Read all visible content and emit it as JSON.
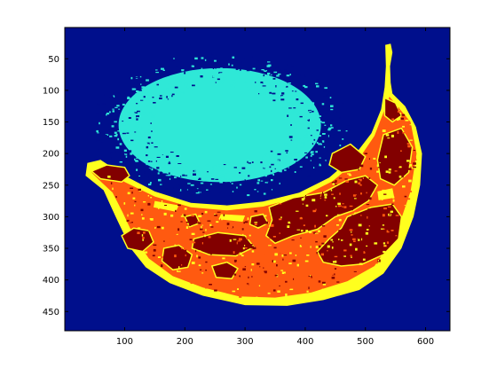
{
  "chart_data": {
    "type": "heatmap",
    "title": "",
    "xlabel": "",
    "ylabel": "",
    "xlim": [
      0.5,
      640.5
    ],
    "ylim": [
      0.5,
      480.5
    ],
    "y_direction": "reversed",
    "colormap": "jet",
    "num_clusters": 5,
    "x_ticks": [
      {
        "value": 100,
        "label": "100"
      },
      {
        "value": 200,
        "label": "200"
      },
      {
        "value": 300,
        "label": "300"
      },
      {
        "value": 400,
        "label": "400"
      },
      {
        "value": 500,
        "label": "500"
      },
      {
        "value": 600,
        "label": "600"
      }
    ],
    "y_ticks": [
      {
        "value": 50,
        "label": "50"
      },
      {
        "value": 100,
        "label": "100"
      },
      {
        "value": 150,
        "label": "150"
      },
      {
        "value": 200,
        "label": "200"
      },
      {
        "value": 250,
        "label": "250"
      },
      {
        "value": 300,
        "label": "300"
      },
      {
        "value": 350,
        "label": "350"
      },
      {
        "value": 400,
        "label": "400"
      },
      {
        "value": 450,
        "label": "450"
      }
    ],
    "colors": {
      "background_cluster": "#000f8c",
      "shadow_cluster": "#2fe8d7",
      "yellow_cluster": "#ffff1e",
      "orange_cluster": "#ff5a10",
      "dark_spots_cluster": "#820000",
      "frame": "#000000"
    },
    "regions": {
      "shadow_ellipse": {
        "cx": 258,
        "cy": 155,
        "rx": 205,
        "ry": 110
      },
      "banana_outer_outline": [
        [
          533,
          28
        ],
        [
          542,
          26
        ],
        [
          545,
          40
        ],
        [
          541,
          62
        ],
        [
          542,
          88
        ],
        [
          545,
          105
        ],
        [
          566,
          125
        ],
        [
          584,
          158
        ],
        [
          594,
          200
        ],
        [
          591,
          250
        ],
        [
          580,
          300
        ],
        [
          560,
          350
        ],
        [
          530,
          390
        ],
        [
          490,
          416
        ],
        [
          430,
          432
        ],
        [
          370,
          441
        ],
        [
          300,
          440
        ],
        [
          230,
          425
        ],
        [
          175,
          405
        ],
        [
          135,
          380
        ],
        [
          110,
          350
        ],
        [
          85,
          300
        ],
        [
          65,
          258
        ],
        [
          35,
          235
        ],
        [
          38,
          215
        ],
        [
          60,
          210
        ],
        [
          100,
          235
        ],
        [
          150,
          260
        ],
        [
          210,
          278
        ],
        [
          270,
          282
        ],
        [
          330,
          276
        ],
        [
          390,
          262
        ],
        [
          440,
          238
        ],
        [
          480,
          205
        ],
        [
          510,
          168
        ],
        [
          526,
          130
        ],
        [
          532,
          95
        ],
        [
          534,
          62
        ]
      ],
      "banana_inner_outline": [
        [
          540,
          110
        ],
        [
          575,
          150
        ],
        [
          585,
          200
        ],
        [
          575,
          260
        ],
        [
          550,
          330
        ],
        [
          515,
          378
        ],
        [
          470,
          402
        ],
        [
          410,
          420
        ],
        [
          350,
          428
        ],
        [
          290,
          426
        ],
        [
          230,
          412
        ],
        [
          180,
          394
        ],
        [
          140,
          366
        ],
        [
          115,
          330
        ],
        [
          96,
          292
        ],
        [
          80,
          262
        ],
        [
          60,
          244
        ],
        [
          45,
          230
        ],
        [
          60,
          222
        ],
        [
          100,
          245
        ],
        [
          150,
          268
        ],
        [
          210,
          285
        ],
        [
          270,
          290
        ],
        [
          330,
          284
        ],
        [
          395,
          268
        ],
        [
          445,
          244
        ],
        [
          488,
          210
        ],
        [
          515,
          172
        ],
        [
          530,
          135
        ]
      ],
      "dark_spots": [
        {
          "points": [
            [
              45,
              228
            ],
            [
              70,
              218
            ],
            [
              100,
              222
            ],
            [
              108,
              235
            ],
            [
              95,
              245
            ],
            [
              60,
              240
            ]
          ]
        },
        {
          "points": [
            [
              340,
              285
            ],
            [
              380,
              270
            ],
            [
              430,
              262
            ],
            [
              470,
              242
            ],
            [
              500,
              235
            ],
            [
              520,
              250
            ],
            [
              505,
              275
            ],
            [
              480,
              290
            ],
            [
              450,
              300
            ],
            [
              420,
              320
            ],
            [
              380,
              330
            ],
            [
              350,
              342
            ],
            [
              335,
              330
            ],
            [
              345,
              305
            ]
          ]
        },
        {
          "points": [
            [
              470,
              300
            ],
            [
              510,
              285
            ],
            [
              545,
              280
            ],
            [
              560,
              300
            ],
            [
              555,
              335
            ],
            [
              530,
              360
            ],
            [
              495,
              375
            ],
            [
              460,
              378
            ],
            [
              430,
              372
            ],
            [
              420,
              355
            ],
            [
              440,
              335
            ],
            [
              460,
              318
            ]
          ]
        },
        {
          "points": [
            [
              530,
              170
            ],
            [
              560,
              160
            ],
            [
              578,
              190
            ],
            [
              572,
              230
            ],
            [
              548,
              250
            ],
            [
              525,
              240
            ],
            [
              520,
              210
            ]
          ]
        },
        {
          "points": [
            [
              532,
              112
            ],
            [
              550,
              120
            ],
            [
              560,
              140
            ],
            [
              545,
              150
            ],
            [
              532,
              140
            ]
          ]
        },
        {
          "points": [
            [
              445,
              200
            ],
            [
              475,
              185
            ],
            [
              500,
              205
            ],
            [
              490,
              225
            ],
            [
              460,
              230
            ],
            [
              440,
              218
            ]
          ]
        },
        {
          "points": [
            [
              215,
              335
            ],
            [
              255,
              325
            ],
            [
              300,
              330
            ],
            [
              315,
              348
            ],
            [
              285,
              362
            ],
            [
              240,
              360
            ],
            [
              212,
              350
            ]
          ]
        },
        {
          "points": [
            [
              95,
              330
            ],
            [
              115,
              318
            ],
            [
              140,
              322
            ],
            [
              148,
              340
            ],
            [
              130,
              355
            ],
            [
              105,
              350
            ]
          ]
        },
        {
          "points": [
            [
              165,
              350
            ],
            [
              190,
              345
            ],
            [
              212,
              360
            ],
            [
              205,
              380
            ],
            [
              180,
              384
            ],
            [
              162,
              370
            ]
          ]
        },
        {
          "points": [
            [
              245,
              378
            ],
            [
              270,
              372
            ],
            [
              288,
              382
            ],
            [
              278,
              398
            ],
            [
              252,
              396
            ]
          ]
        },
        {
          "points": [
            [
              310,
              300
            ],
            [
              330,
              296
            ],
            [
              338,
              310
            ],
            [
              322,
              318
            ],
            [
              308,
              312
            ]
          ]
        },
        {
          "points": [
            [
              200,
              300
            ],
            [
              218,
              296
            ],
            [
              225,
              310
            ],
            [
              208,
              316
            ]
          ]
        }
      ],
      "yellow_patches": [
        {
          "points": [
            [
              150,
              275
            ],
            [
              190,
              282
            ],
            [
              185,
              292
            ],
            [
              148,
              285
            ]
          ]
        },
        {
          "points": [
            [
              260,
              296
            ],
            [
              300,
              298
            ],
            [
              296,
              308
            ],
            [
              256,
              304
            ]
          ]
        },
        {
          "points": [
            [
              390,
              290
            ],
            [
              420,
              282
            ],
            [
              425,
              295
            ],
            [
              395,
              302
            ]
          ]
        },
        {
          "points": [
            [
              520,
              260
            ],
            [
              545,
              255
            ],
            [
              548,
              270
            ],
            [
              522,
              274
            ]
          ]
        }
      ]
    },
    "noise": {
      "shadow_speckle_count": 900,
      "banana_speckle_count": 600,
      "seed": 7
    }
  }
}
